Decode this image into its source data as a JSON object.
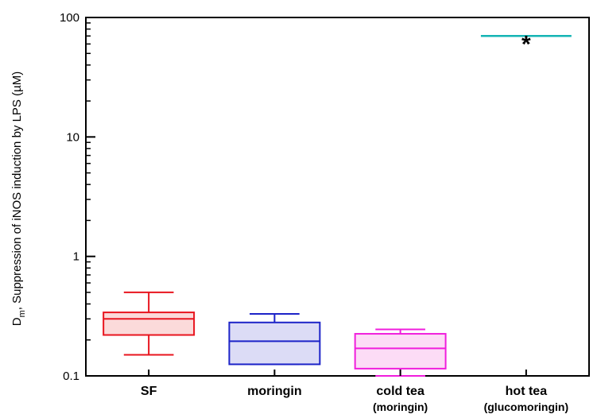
{
  "chart_data": {
    "type": "box",
    "ylabel_main": "D",
    "ylabel_sub": "m",
    "ylabel_rest": ", Suppression of iNOS induction by LPS (µM)",
    "yscale": "log",
    "ylim": [
      0.1,
      100
    ],
    "yticks": [
      {
        "value": 0.1,
        "label": "0.1"
      },
      {
        "value": 1,
        "label": "1"
      },
      {
        "value": 10,
        "label": "10"
      },
      {
        "value": 100,
        "label": "100"
      }
    ],
    "categories": [
      {
        "label": "SF",
        "sublabel": ""
      },
      {
        "label": "moringin",
        "sublabel": ""
      },
      {
        "label": "cold tea",
        "sublabel": "(moringin)"
      },
      {
        "label": "hot tea",
        "sublabel": "(glucomoringin)"
      }
    ],
    "boxes": [
      {
        "name": "SF",
        "whisker_low": 0.15,
        "q1": 0.22,
        "median": 0.3,
        "q3": 0.34,
        "whisker_high": 0.5,
        "color": "#e8141e",
        "fill": "#fbdada"
      },
      {
        "name": "moringin",
        "whisker_low": 0.125,
        "q1": 0.125,
        "median": 0.195,
        "q3": 0.28,
        "whisker_high": 0.33,
        "color": "#1c23c8",
        "fill": "#dcdcf6"
      },
      {
        "name": "cold tea",
        "whisker_low": 0.1,
        "q1": 0.115,
        "median": 0.17,
        "q3": 0.225,
        "whisker_high": 0.245,
        "color": "#f01edc",
        "fill": "#fcdcf6"
      },
      {
        "name": "hot tea",
        "value": 70,
        "color": "#14b4b4",
        "marker": "*"
      }
    ]
  }
}
